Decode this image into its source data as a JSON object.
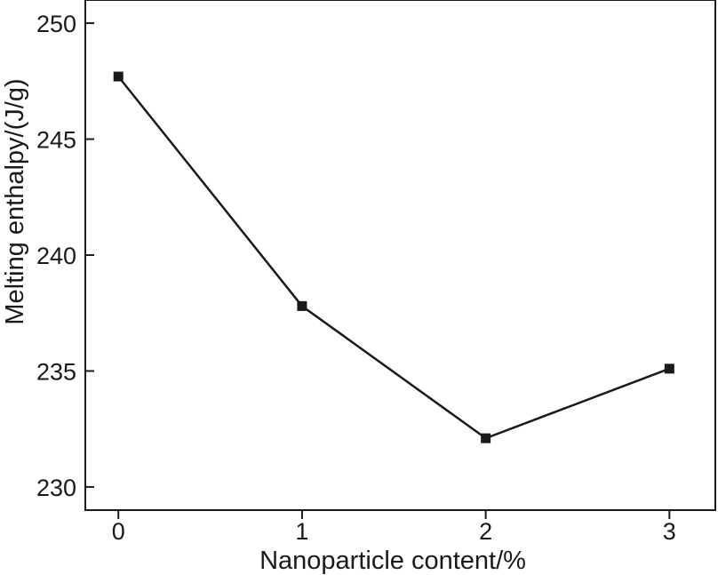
{
  "chart_data": {
    "type": "line",
    "title": "",
    "xlabel": "Nanoparticle content/%",
    "ylabel": "Melting enthalpy/(J/g)",
    "xlim": [
      -0.18,
      3.25
    ],
    "ylim": [
      229,
      251
    ],
    "x_ticks": [
      "0",
      "1",
      "2",
      "3"
    ],
    "y_ticks": [
      "230",
      "235",
      "240",
      "245",
      "250"
    ],
    "grid": false,
    "legend": "none",
    "colors": {
      "line": "#1a1a1a",
      "marker": "#1a1a1a",
      "axis": "#1a1a1a"
    },
    "series": [
      {
        "x": [
          0,
          1,
          2,
          3
        ],
        "y": [
          247.7,
          237.8,
          232.1,
          235.1
        ],
        "marker": "square"
      }
    ]
  }
}
